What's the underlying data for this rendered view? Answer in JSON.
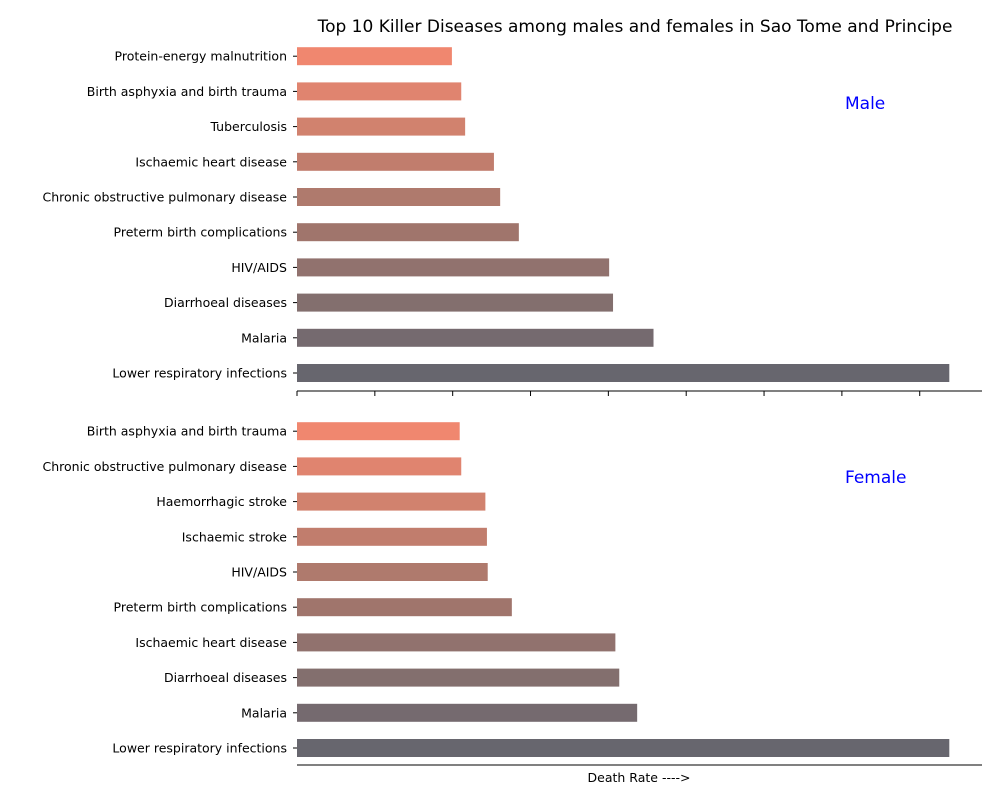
{
  "chart_data": {
    "type": "bar",
    "orientation": "horizontal",
    "title": "Top 10 Killer Diseases among males and females in Sao Tome and Principe",
    "xlabel": "Death Rate ---->",
    "xlim": [
      0,
      88
    ],
    "x_tick_labels_shown": false,
    "grid": false,
    "colors": [
      "#67666e",
      "#756a6f",
      "#836f6e",
      "#91726e",
      "#a0756c",
      "#af7a6d",
      "#c17d6d",
      "#d1826e",
      "#e0846f",
      "#f0876f"
    ],
    "panels": [
      {
        "label": "Male",
        "label_color": "#0000ff",
        "categories": [
          "Lower respiratory infections",
          "Malaria",
          "Diarrhoeal diseases",
          "HIV/AIDS",
          "Preterm birth complications",
          "Chronic obstructive pulmonary disease",
          "Ischaemic heart disease",
          "Tuberculosis",
          "Birth asphyxia and birth trauma",
          "Protein-energy malnutrition"
        ],
        "values": [
          83.8,
          45.8,
          40.6,
          40.1,
          28.5,
          26.1,
          25.3,
          21.6,
          21.1,
          19.9
        ]
      },
      {
        "label": "Female",
        "label_color": "#0000ff",
        "categories": [
          "Lower respiratory infections",
          "Malaria",
          "Diarrhoeal diseases",
          "Ischaemic heart disease",
          "Preterm birth complications",
          "HIV/AIDS",
          "Ischaemic stroke",
          "Haemorrhagic stroke",
          "Chronic obstructive pulmonary disease",
          "Birth asphyxia and birth trauma"
        ],
        "values": [
          83.8,
          43.7,
          41.4,
          40.9,
          27.6,
          24.5,
          24.4,
          24.2,
          21.1,
          20.9
        ]
      }
    ]
  }
}
